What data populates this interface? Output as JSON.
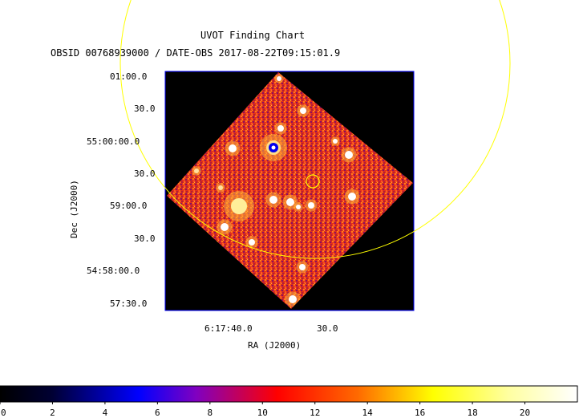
{
  "chart_data": {
    "type": "heatmap",
    "title": "UVOT Finding Chart",
    "subtitle": "OBSID 00768939000 / DATE-OBS 2017-08-22T09:15:01.9",
    "xlabel": "RA (J2000)",
    "ylabel": "Dec (J2000)",
    "x_ticks": [
      "6:17:40.0",
      "30.0"
    ],
    "y_ticks": [
      "01:00.0",
      "30.0",
      "55:00:00.0",
      "30.0",
      "59:00.0",
      "30.0",
      "54:58:00.0",
      "57:30.0"
    ],
    "colorbar": {
      "ticks": [
        0,
        2,
        4,
        6,
        8,
        10,
        12,
        14,
        16,
        18,
        20
      ],
      "range": [
        0,
        22
      ],
      "colormap": [
        "#000000",
        "#0000ff",
        "#ff0000",
        "#ffff00",
        "#ffffff"
      ]
    },
    "overlays": [
      "yellow-circle-large",
      "yellow-circle-small"
    ],
    "colors": {
      "frame": "#0000ff",
      "overlay": "#ffff00",
      "background": "#ffffff"
    }
  }
}
